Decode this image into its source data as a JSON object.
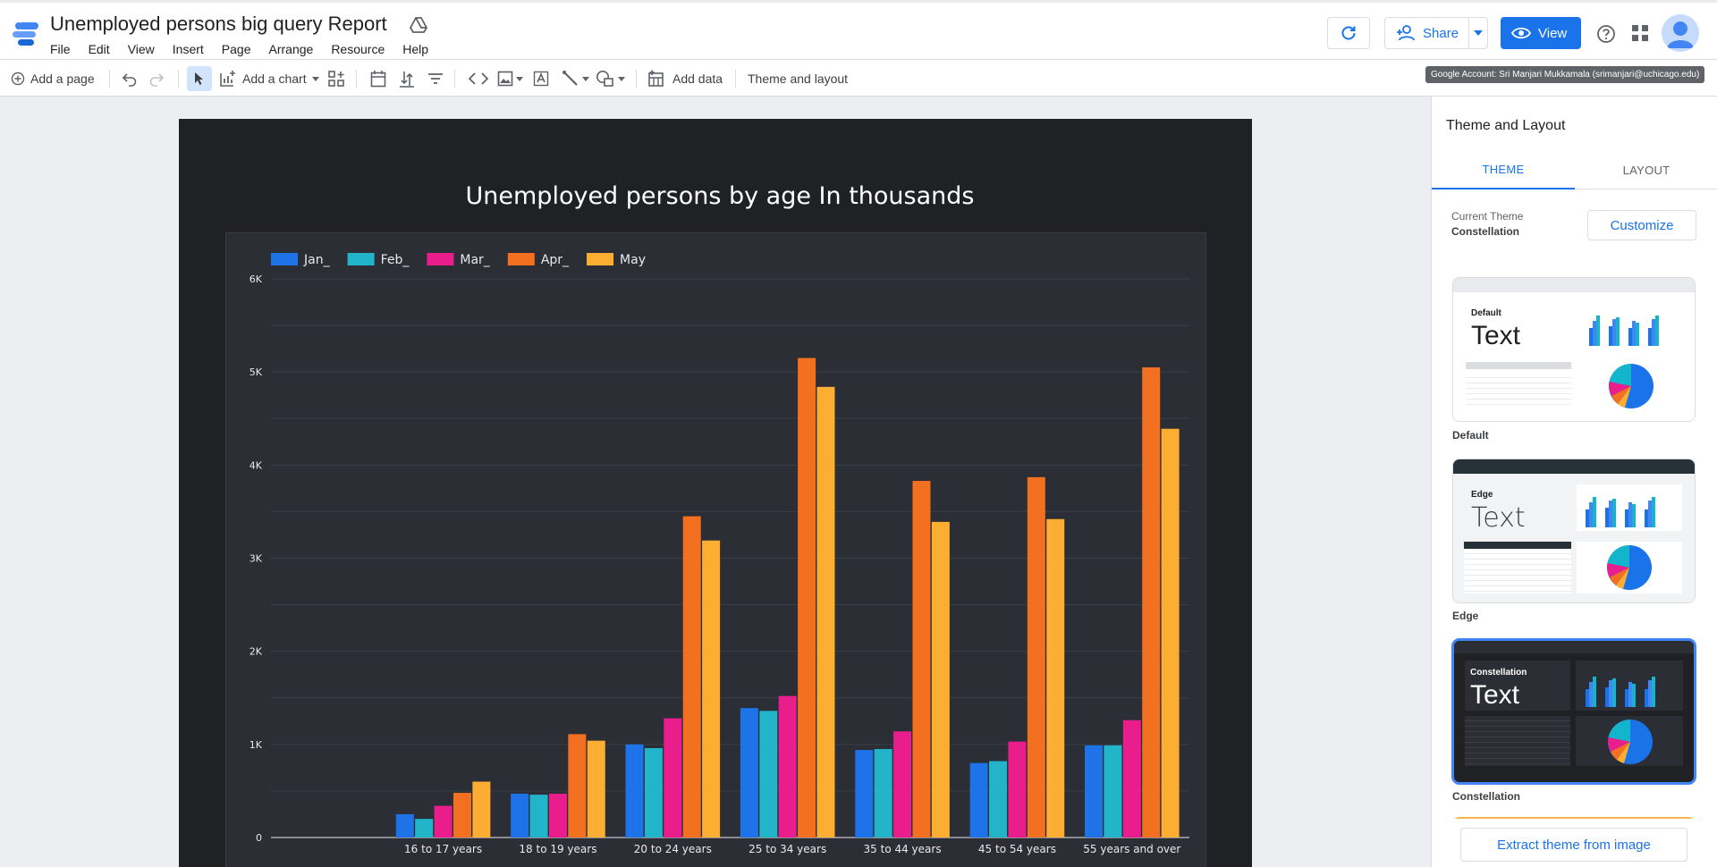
{
  "header": {
    "doc_title": "Unemployed persons big query Report",
    "menu": [
      "File",
      "Edit",
      "View",
      "Insert",
      "Page",
      "Arrange",
      "Resource",
      "Help"
    ],
    "share_label": "Share",
    "view_label": "View"
  },
  "toolbar": {
    "add_page_label": "Add a page",
    "add_chart_label": "Add a chart",
    "add_data_label": "Add data",
    "theme_layout_label": "Theme and layout",
    "account_tooltip": "Google Account: Sri Manjari Mukkamala (srimanjari@uchicago.edu)"
  },
  "report": {
    "title": "Unemployed persons by age In thousands"
  },
  "chart_data": {
    "type": "bar",
    "categories": [
      "16 to 17 years",
      "18 to 19 years",
      "20 to 24 years",
      "25 to 34 years",
      "35 to 44 years",
      "45 to 54 years",
      "55 years and over"
    ],
    "series": [
      {
        "name": "Jan_",
        "color": "#1f73e8",
        "values": [
          250,
          470,
          1000,
          1390,
          940,
          800,
          990
        ]
      },
      {
        "name": "Feb_",
        "color": "#22b5c9",
        "values": [
          200,
          460,
          960,
          1360,
          950,
          820,
          990
        ]
      },
      {
        "name": "Mar_",
        "color": "#e91e8c",
        "values": [
          340,
          470,
          1280,
          1520,
          1140,
          1030,
          1260
        ]
      },
      {
        "name": "Apr_",
        "color": "#f47021",
        "values": [
          480,
          1110,
          3450,
          5150,
          3830,
          3870,
          5050
        ]
      },
      {
        "name": "May",
        "color": "#fbae32",
        "values": [
          600,
          1040,
          3190,
          4840,
          3390,
          3420,
          4390
        ]
      }
    ],
    "ylim": [
      0,
      6000
    ],
    "yticks": [
      "0",
      "1K",
      "2K",
      "3K",
      "4K",
      "5K",
      "6K"
    ],
    "ytick_values": [
      0,
      1000,
      2000,
      3000,
      4000,
      5000,
      6000
    ],
    "grid": true,
    "legend_position": "top-left",
    "xlabel": "",
    "ylabel": ""
  },
  "panel": {
    "title": "Theme and Layout",
    "tabs": [
      "THEME",
      "LAYOUT"
    ],
    "current_theme_label": "Current Theme",
    "current_theme_value": "Constellation",
    "customize_label": "Customize",
    "themes": [
      {
        "name": "Default",
        "card_label": "Default",
        "card_text": "Text"
      },
      {
        "name": "Edge",
        "card_label": "Edge",
        "card_text": "Text"
      },
      {
        "name": "Constellation",
        "card_label": "Constellation",
        "card_text": "Text"
      }
    ],
    "extract_label": "Extract theme from image"
  }
}
